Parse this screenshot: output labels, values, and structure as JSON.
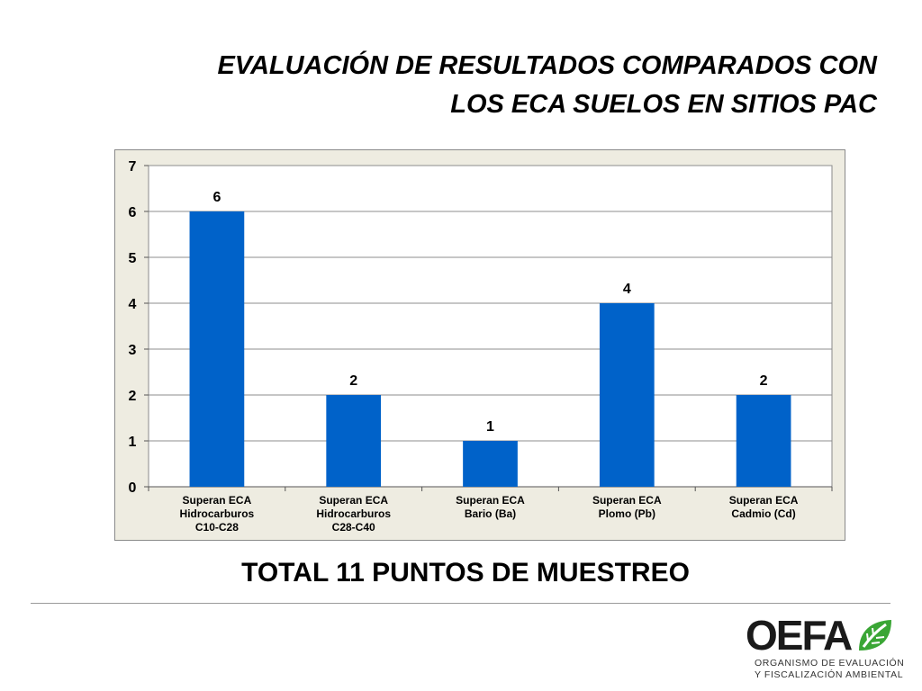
{
  "slide": {
    "title_line1": "EVALUACIÓN DE RESULTADOS COMPARADOS CON",
    "title_line2": "LOS ECA SUELOS EN SITIOS PAC",
    "subtitle": "TOTAL 11 PUNTOS DE MUESTREO"
  },
  "logo": {
    "wordmark": "OEFA",
    "line1": "ORGANISMO DE EVALUACIÓN",
    "line2": "Y FISCALIZACIÓN AMBIENTAL",
    "green": "#3aa635"
  },
  "chart_data": {
    "type": "bar",
    "categories": [
      [
        "Superan ECA",
        "Hidrocarburos",
        "C10-C28"
      ],
      [
        "Superan ECA",
        "Hidrocarburos",
        "C28-C40"
      ],
      [
        "Superan ECA",
        "Bario (Ba)"
      ],
      [
        "Superan ECA",
        "Plomo (Pb)"
      ],
      [
        "Superan ECA",
        "Cadmio (Cd)"
      ]
    ],
    "values": [
      6,
      2,
      1,
      4,
      2
    ],
    "data_labels": [
      "6",
      "2",
      "1",
      "4",
      "2"
    ],
    "ylim": [
      0,
      7
    ],
    "yticks": [
      "0",
      "1",
      "2",
      "3",
      "4",
      "5",
      "6",
      "7"
    ],
    "grid": true,
    "legend": "none",
    "bar_color": "#0062c9",
    "plot_background": "#ffffff",
    "chart_background": "#eeece1"
  }
}
